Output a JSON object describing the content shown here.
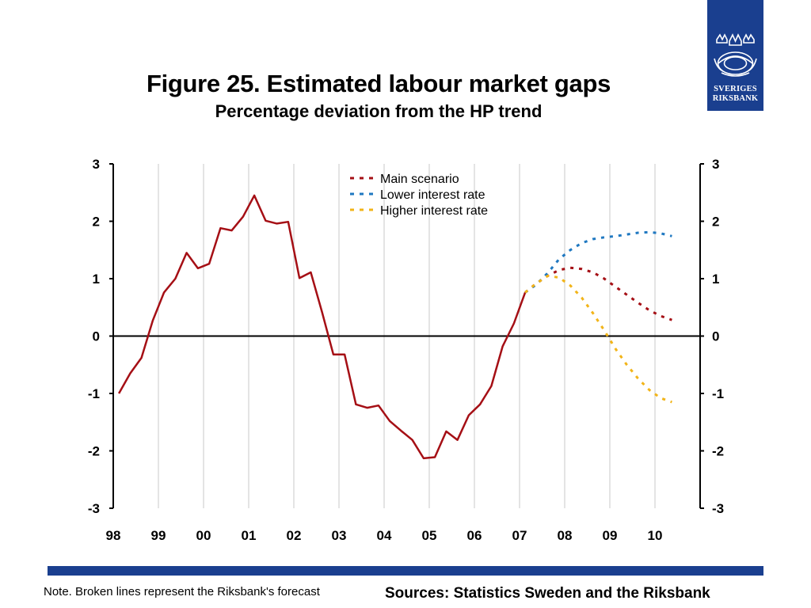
{
  "title": "Figure 25. Estimated labour market gaps",
  "subtitle": "Percentage deviation from the HP trend",
  "logo": {
    "icon": "crown-seal-icon",
    "line1": "SVERIGES",
    "line2": "RIKSBANK"
  },
  "note": "Note. Broken lines represent the Riksbank's forecast",
  "sources": "Sources: Statistics Sweden and the Riksbank",
  "colors": {
    "brand": "#1a3f8f",
    "history": "#a50f15",
    "main": "#a50f15",
    "lower": "#1f78c1",
    "higher": "#f2b418"
  },
  "chart_data": {
    "type": "line",
    "title": "Figure 25. Estimated labour market gaps",
    "subtitle": "Percentage deviation from the HP trend",
    "xlabel": "",
    "ylabel": "",
    "x_ticks": [
      "98",
      "99",
      "00",
      "01",
      "02",
      "03",
      "04",
      "05",
      "06",
      "07",
      "08",
      "09",
      "10"
    ],
    "xlim": [
      1998,
      2011
    ],
    "ylim": [
      -3,
      3
    ],
    "y_ticks": [
      "3",
      "2",
      "1",
      "0",
      "-1",
      "-2",
      "-3"
    ],
    "dual_y_axis": true,
    "vertical_gridlines": true,
    "legend_position": "top-center",
    "series": [
      {
        "name": "",
        "style": "solid",
        "color": "#a50f15",
        "x": [
          1998.125,
          1998.375,
          1998.625,
          1998.875,
          1999.125,
          1999.375,
          1999.625,
          1999.875,
          2000.125,
          2000.375,
          2000.625,
          2000.875,
          2001.125,
          2001.375,
          2001.625,
          2001.875,
          2002.125,
          2002.375,
          2002.625,
          2002.875,
          2003.125,
          2003.375,
          2003.625,
          2003.875,
          2004.125,
          2004.375,
          2004.625,
          2004.875,
          2005.125,
          2005.375,
          2005.625,
          2005.875,
          2006.125,
          2006.375,
          2006.625,
          2006.875,
          2007.125
        ],
        "y": [
          -1.0,
          -0.65,
          -0.38,
          0.27,
          0.76,
          1.0,
          1.45,
          1.18,
          1.26,
          1.88,
          1.84,
          2.08,
          2.45,
          2.01,
          1.96,
          1.99,
          1.01,
          1.11,
          0.42,
          -0.32,
          -0.32,
          -1.19,
          -1.25,
          -1.21,
          -1.48,
          -1.65,
          -1.81,
          -2.13,
          -2.11,
          -1.66,
          -1.81,
          -1.38,
          -1.19,
          -0.87,
          -0.18,
          0.22,
          0.76
        ]
      },
      {
        "name": "Main scenario",
        "style": "dashed",
        "color": "#a50f15",
        "x": [
          2007.125,
          2007.375,
          2007.625,
          2007.875,
          2008.125,
          2008.375,
          2008.625,
          2008.875,
          2009.125,
          2009.375,
          2009.625,
          2009.875,
          2010.125,
          2010.375
        ],
        "y": [
          0.76,
          0.92,
          1.05,
          1.15,
          1.19,
          1.17,
          1.11,
          1.0,
          0.86,
          0.72,
          0.58,
          0.45,
          0.35,
          0.28
        ]
      },
      {
        "name": "Lower interest rate",
        "style": "dashed",
        "color": "#1f78c1",
        "x": [
          2007.125,
          2007.375,
          2007.625,
          2007.875,
          2008.125,
          2008.375,
          2008.625,
          2008.875,
          2009.125,
          2009.375,
          2009.625,
          2009.875,
          2010.125,
          2010.375
        ],
        "y": [
          0.76,
          0.9,
          1.1,
          1.34,
          1.5,
          1.62,
          1.69,
          1.72,
          1.74,
          1.77,
          1.8,
          1.81,
          1.79,
          1.74
        ]
      },
      {
        "name": "Higher interest rate",
        "style": "dashed",
        "color": "#f2b418",
        "x": [
          2007.125,
          2007.375,
          2007.625,
          2007.875,
          2008.125,
          2008.375,
          2008.625,
          2008.875,
          2009.125,
          2009.375,
          2009.625,
          2009.875,
          2010.125,
          2010.375
        ],
        "y": [
          0.76,
          0.92,
          1.05,
          1.02,
          0.88,
          0.67,
          0.4,
          0.1,
          -0.22,
          -0.5,
          -0.74,
          -0.94,
          -1.08,
          -1.15
        ]
      }
    ]
  }
}
